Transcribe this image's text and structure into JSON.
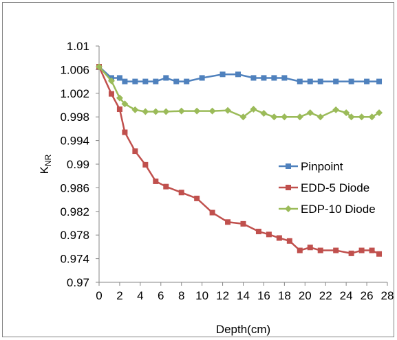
{
  "chart_data": {
    "type": "line",
    "title": "",
    "xlabel": "Depth(cm)",
    "ylabel": "K",
    "ylabel_subscript": "NR",
    "xlim": [
      0,
      28
    ],
    "ylim": [
      0.97,
      1.01
    ],
    "x_ticks": [
      "0",
      "2",
      "4",
      "6",
      "8",
      "10",
      "12",
      "14",
      "16",
      "18",
      "20",
      "22",
      "24",
      "26",
      "28"
    ],
    "y_ticks": [
      "0.97",
      "0.974",
      "0.978",
      "0.982",
      "0.986",
      "0.99",
      "0.994",
      "0.998",
      "1.002",
      "1.006",
      "1.01"
    ],
    "grid": false,
    "legend_position": "right",
    "series": [
      {
        "name": "Pinpoint",
        "color": "#4F81BD",
        "marker": "square",
        "points": [
          [
            0,
            1.0065
          ],
          [
            1.2,
            1.0046
          ],
          [
            2.0,
            1.0046
          ],
          [
            2.5,
            1.004
          ],
          [
            3.5,
            1.004
          ],
          [
            4.5,
            1.004
          ],
          [
            5.5,
            1.004
          ],
          [
            6.5,
            1.0046
          ],
          [
            7.5,
            1.004
          ],
          [
            8.5,
            1.004
          ],
          [
            10.0,
            1.0046
          ],
          [
            12.0,
            1.0052
          ],
          [
            13.5,
            1.0052
          ],
          [
            15.0,
            1.0046
          ],
          [
            16.0,
            1.0046
          ],
          [
            17.0,
            1.0046
          ],
          [
            18.0,
            1.0046
          ],
          [
            19.5,
            1.004
          ],
          [
            20.5,
            1.004
          ],
          [
            21.5,
            1.004
          ],
          [
            23.0,
            1.004
          ],
          [
            24.5,
            1.004
          ],
          [
            26.0,
            1.004
          ],
          [
            27.2,
            1.004
          ]
        ]
      },
      {
        "name": "EDD-5 Diode",
        "color": "#C0504D",
        "marker": "square",
        "points": [
          [
            0,
            1.0065
          ],
          [
            1.2,
            1.0019
          ],
          [
            2.0,
            0.9993
          ],
          [
            2.5,
            0.9954
          ],
          [
            3.5,
            0.9922
          ],
          [
            4.5,
            0.9899
          ],
          [
            5.5,
            0.9871
          ],
          [
            6.5,
            0.9862
          ],
          [
            8.0,
            0.9852
          ],
          [
            9.5,
            0.9842
          ],
          [
            11.0,
            0.9818
          ],
          [
            12.5,
            0.9802
          ],
          [
            14.0,
            0.9799
          ],
          [
            15.5,
            0.9786
          ],
          [
            16.5,
            0.9781
          ],
          [
            17.5,
            0.9775
          ],
          [
            18.5,
            0.977
          ],
          [
            19.5,
            0.9754
          ],
          [
            20.5,
            0.9759
          ],
          [
            21.5,
            0.9754
          ],
          [
            23.0,
            0.9754
          ],
          [
            24.5,
            0.9749
          ],
          [
            25.5,
            0.9754
          ],
          [
            26.5,
            0.9754
          ],
          [
            27.2,
            0.9748
          ]
        ]
      },
      {
        "name": "EDP-10 Diode",
        "color": "#9BBB59",
        "marker": "diamond",
        "points": [
          [
            0,
            1.0065
          ],
          [
            1.2,
            1.0041
          ],
          [
            2.0,
            1.0012
          ],
          [
            2.5,
            1.0002
          ],
          [
            3.5,
            0.9992
          ],
          [
            4.5,
            0.9989
          ],
          [
            5.5,
            0.9989
          ],
          [
            6.5,
            0.9989
          ],
          [
            8.0,
            0.999
          ],
          [
            9.5,
            0.999
          ],
          [
            11.0,
            0.999
          ],
          [
            12.5,
            0.9991
          ],
          [
            14.0,
            0.998
          ],
          [
            15.0,
            0.9993
          ],
          [
            16.0,
            0.9986
          ],
          [
            17.0,
            0.998
          ],
          [
            18.0,
            0.998
          ],
          [
            19.5,
            0.998
          ],
          [
            20.5,
            0.9987
          ],
          [
            21.5,
            0.998
          ],
          [
            23.0,
            0.9992
          ],
          [
            24.0,
            0.9987
          ],
          [
            24.5,
            0.998
          ],
          [
            25.5,
            0.998
          ],
          [
            26.5,
            0.998
          ],
          [
            27.2,
            0.9987
          ]
        ]
      }
    ]
  }
}
